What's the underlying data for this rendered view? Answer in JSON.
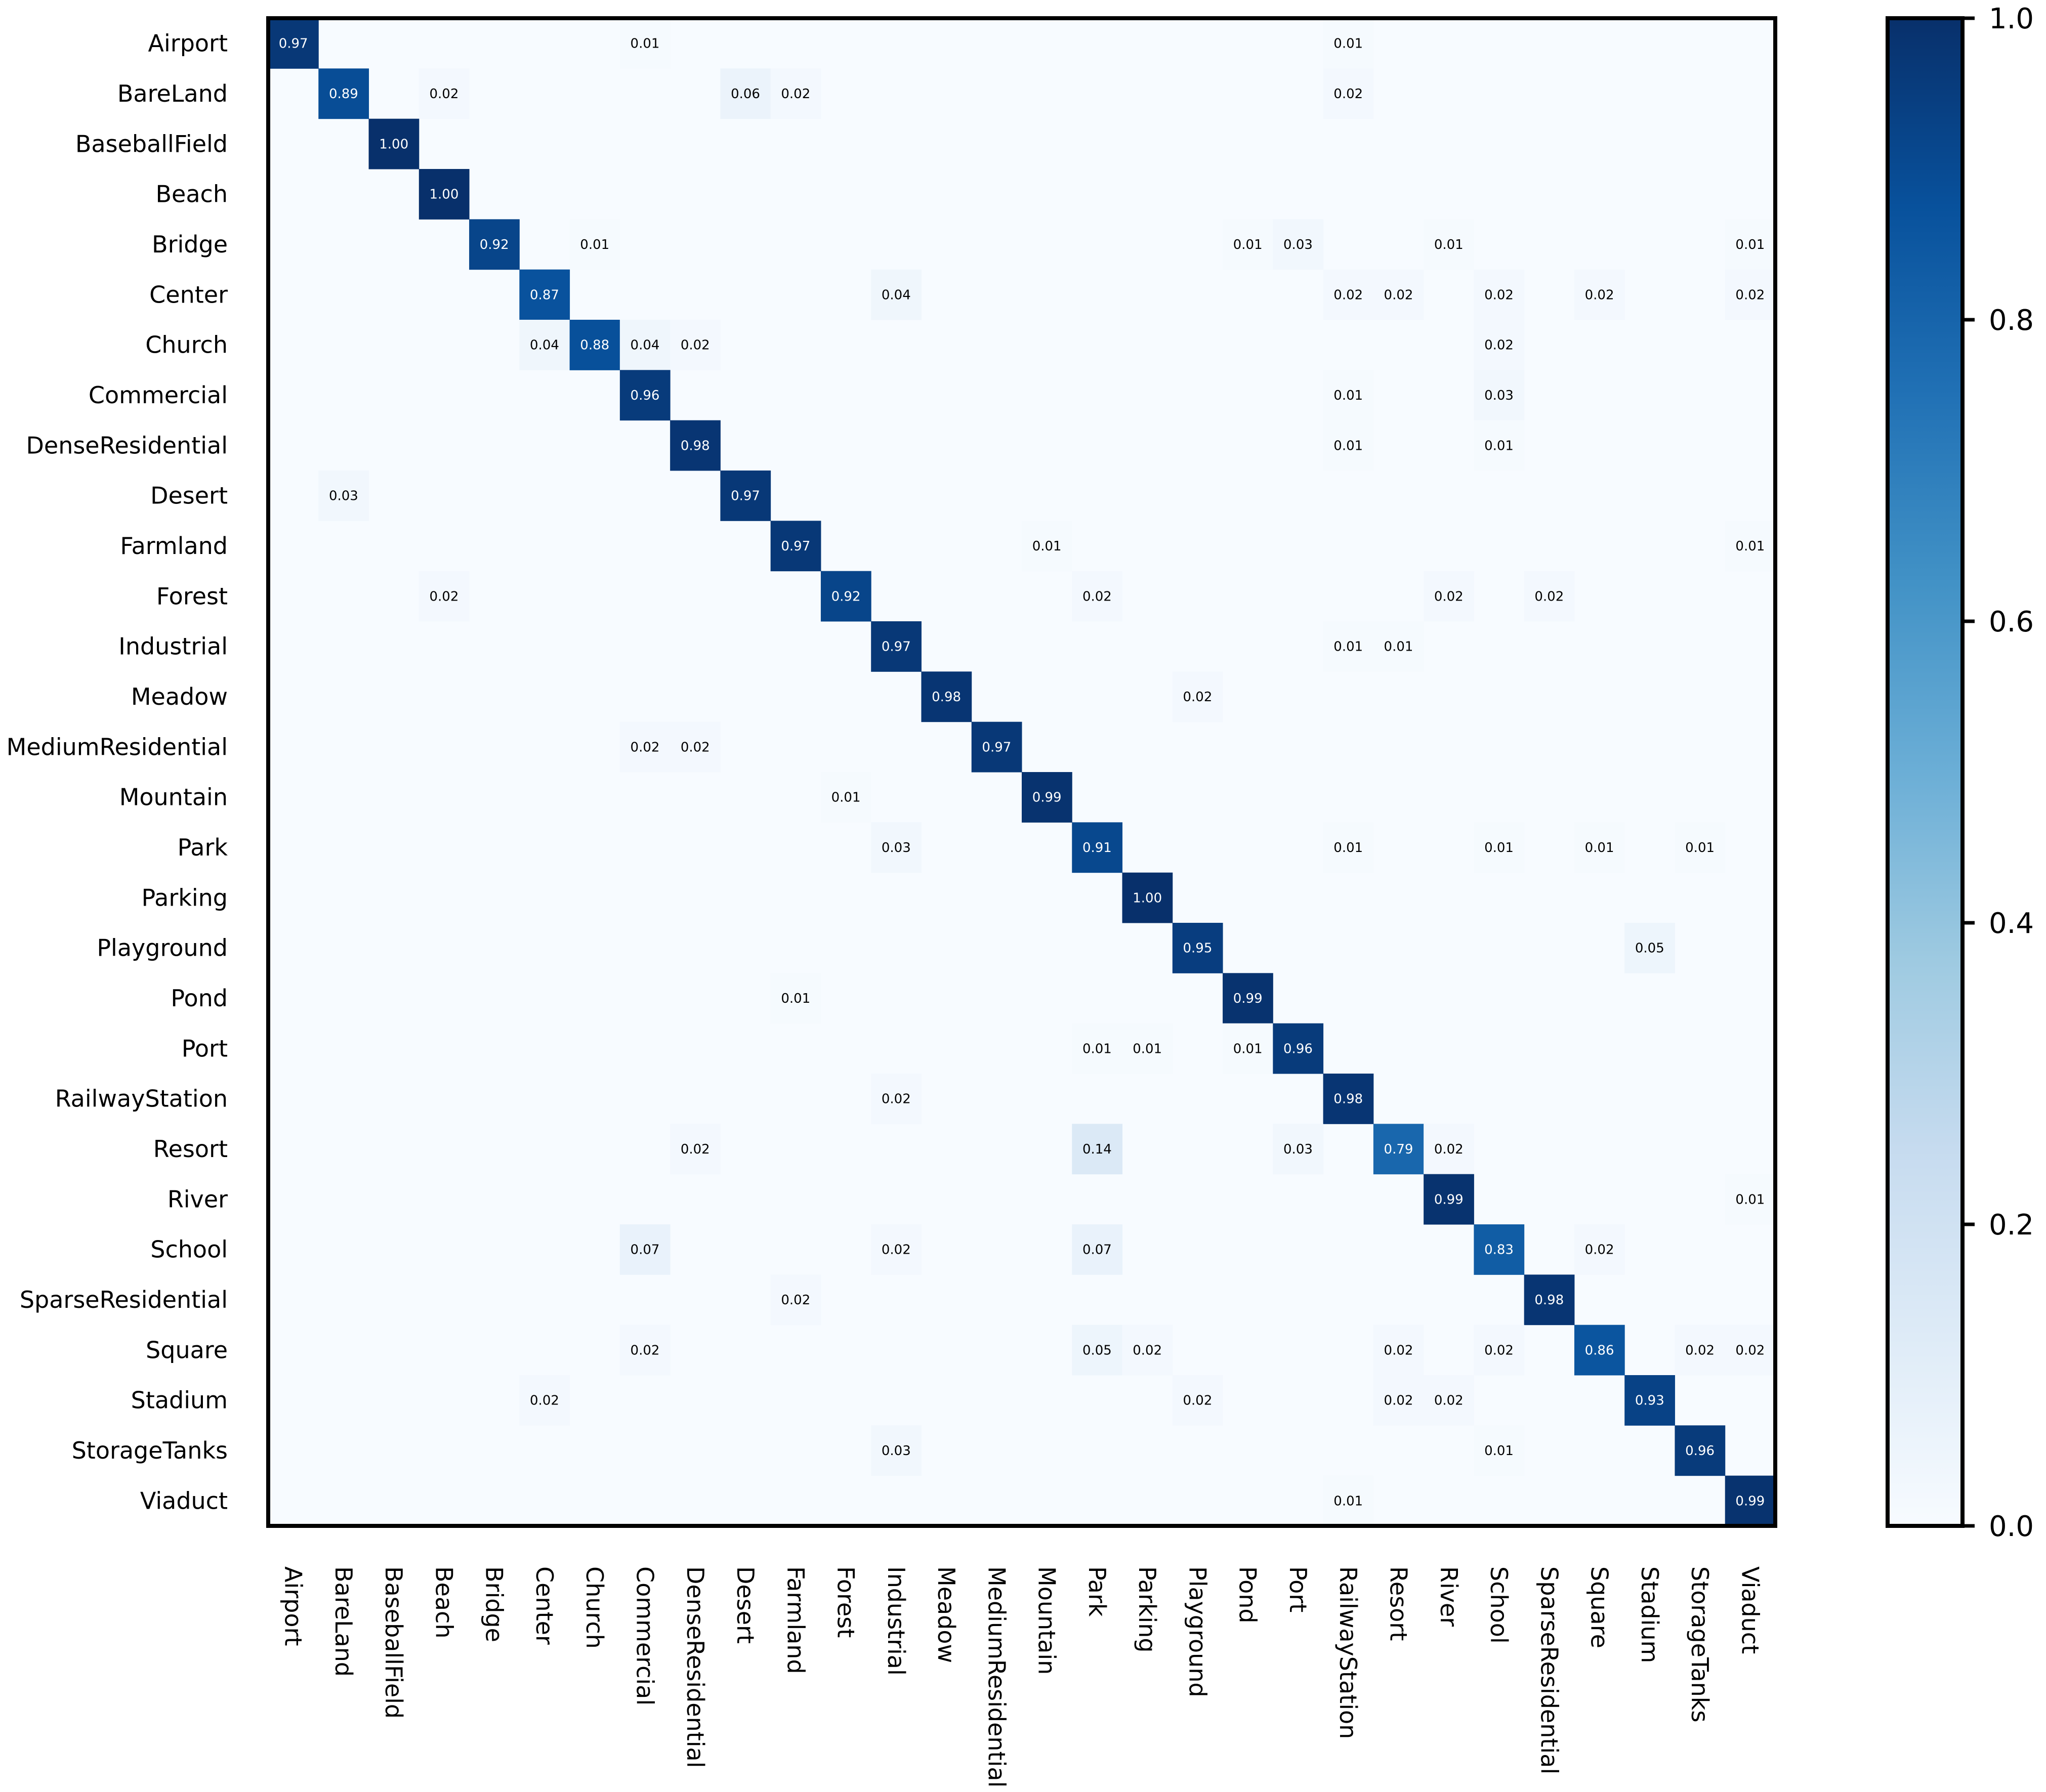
{
  "chart_data": {
    "type": "heatmap",
    "title": "",
    "xlabel": "",
    "ylabel": "",
    "labels": [
      "Airport",
      "BareLand",
      "BaseballField",
      "Beach",
      "Bridge",
      "Center",
      "Church",
      "Commercial",
      "DenseResidential",
      "Desert",
      "Farmland",
      "Forest",
      "Industrial",
      "Meadow",
      "MediumResidential",
      "Mountain",
      "Park",
      "Parking",
      "Playground",
      "Pond",
      "Port",
      "RailwayStation",
      "Resort",
      "River",
      "School",
      "SparseResidential",
      "Square",
      "Stadium",
      "StorageTanks",
      "Viaduct"
    ],
    "cells": [
      [
        0,
        0,
        0.97
      ],
      [
        0,
        7,
        0.01
      ],
      [
        0,
        21,
        0.01
      ],
      [
        1,
        1,
        0.89
      ],
      [
        1,
        3,
        0.02
      ],
      [
        1,
        9,
        0.06
      ],
      [
        1,
        10,
        0.02
      ],
      [
        1,
        21,
        0.02
      ],
      [
        2,
        2,
        1.0
      ],
      [
        3,
        3,
        1.0
      ],
      [
        4,
        4,
        0.92
      ],
      [
        4,
        6,
        0.01
      ],
      [
        4,
        19,
        0.01
      ],
      [
        4,
        20,
        0.03
      ],
      [
        4,
        23,
        0.01
      ],
      [
        4,
        29,
        0.01
      ],
      [
        5,
        5,
        0.87
      ],
      [
        5,
        12,
        0.04
      ],
      [
        5,
        21,
        0.02
      ],
      [
        5,
        22,
        0.02
      ],
      [
        5,
        24,
        0.02
      ],
      [
        5,
        26,
        0.02
      ],
      [
        5,
        29,
        0.02
      ],
      [
        6,
        5,
        0.04
      ],
      [
        6,
        6,
        0.88
      ],
      [
        6,
        7,
        0.04
      ],
      [
        6,
        8,
        0.02
      ],
      [
        6,
        24,
        0.02
      ],
      [
        7,
        7,
        0.96
      ],
      [
        7,
        21,
        0.01
      ],
      [
        7,
        24,
        0.03
      ],
      [
        8,
        8,
        0.98
      ],
      [
        8,
        21,
        0.01
      ],
      [
        8,
        24,
        0.01
      ],
      [
        9,
        1,
        0.03
      ],
      [
        9,
        9,
        0.97
      ],
      [
        10,
        10,
        0.97
      ],
      [
        10,
        15,
        0.01
      ],
      [
        10,
        29,
        0.01
      ],
      [
        11,
        3,
        0.02
      ],
      [
        11,
        11,
        0.92
      ],
      [
        11,
        16,
        0.02
      ],
      [
        11,
        23,
        0.02
      ],
      [
        11,
        25,
        0.02
      ],
      [
        12,
        12,
        0.97
      ],
      [
        12,
        21,
        0.01
      ],
      [
        12,
        22,
        0.01
      ],
      [
        13,
        13,
        0.98
      ],
      [
        13,
        18,
        0.02
      ],
      [
        14,
        7,
        0.02
      ],
      [
        14,
        8,
        0.02
      ],
      [
        14,
        14,
        0.97
      ],
      [
        15,
        11,
        0.01
      ],
      [
        15,
        15,
        0.99
      ],
      [
        16,
        12,
        0.03
      ],
      [
        16,
        16,
        0.91
      ],
      [
        16,
        21,
        0.01
      ],
      [
        16,
        24,
        0.01
      ],
      [
        16,
        26,
        0.01
      ],
      [
        16,
        28,
        0.01
      ],
      [
        17,
        17,
        1.0
      ],
      [
        18,
        18,
        0.95
      ],
      [
        18,
        27,
        0.05
      ],
      [
        19,
        10,
        0.01
      ],
      [
        19,
        19,
        0.99
      ],
      [
        20,
        16,
        0.01
      ],
      [
        20,
        17,
        0.01
      ],
      [
        20,
        19,
        0.01
      ],
      [
        20,
        20,
        0.96
      ],
      [
        21,
        12,
        0.02
      ],
      [
        21,
        21,
        0.98
      ],
      [
        22,
        8,
        0.02
      ],
      [
        22,
        16,
        0.14
      ],
      [
        22,
        20,
        0.03
      ],
      [
        22,
        22,
        0.79
      ],
      [
        22,
        23,
        0.02
      ],
      [
        23,
        23,
        0.99
      ],
      [
        23,
        29,
        0.01
      ],
      [
        24,
        7,
        0.07
      ],
      [
        24,
        12,
        0.02
      ],
      [
        24,
        16,
        0.07
      ],
      [
        24,
        24,
        0.83
      ],
      [
        24,
        26,
        0.02
      ],
      [
        25,
        10,
        0.02
      ],
      [
        25,
        25,
        0.98
      ],
      [
        26,
        7,
        0.02
      ],
      [
        26,
        16,
        0.05
      ],
      [
        26,
        17,
        0.02
      ],
      [
        26,
        22,
        0.02
      ],
      [
        26,
        24,
        0.02
      ],
      [
        26,
        26,
        0.86
      ],
      [
        26,
        28,
        0.02
      ],
      [
        26,
        29,
        0.02
      ],
      [
        27,
        5,
        0.02
      ],
      [
        27,
        18,
        0.02
      ],
      [
        27,
        22,
        0.02
      ],
      [
        27,
        23,
        0.02
      ],
      [
        27,
        27,
        0.93
      ],
      [
        28,
        12,
        0.03
      ],
      [
        28,
        24,
        0.01
      ],
      [
        28,
        28,
        0.96
      ],
      [
        29,
        21,
        0.01
      ],
      [
        29,
        29,
        0.99
      ]
    ],
    "colorbar": {
      "range": [
        0.0,
        1.0
      ],
      "ticks": [
        "0.0",
        "0.2",
        "0.4",
        "0.6",
        "0.8",
        "1.0"
      ],
      "colormap": "Blues"
    },
    "value_format": "2 decimals"
  },
  "colors": {
    "low": "#f7fbff",
    "high": "#08306b",
    "text_dark": "#000000",
    "text_light": "#ffffff"
  }
}
